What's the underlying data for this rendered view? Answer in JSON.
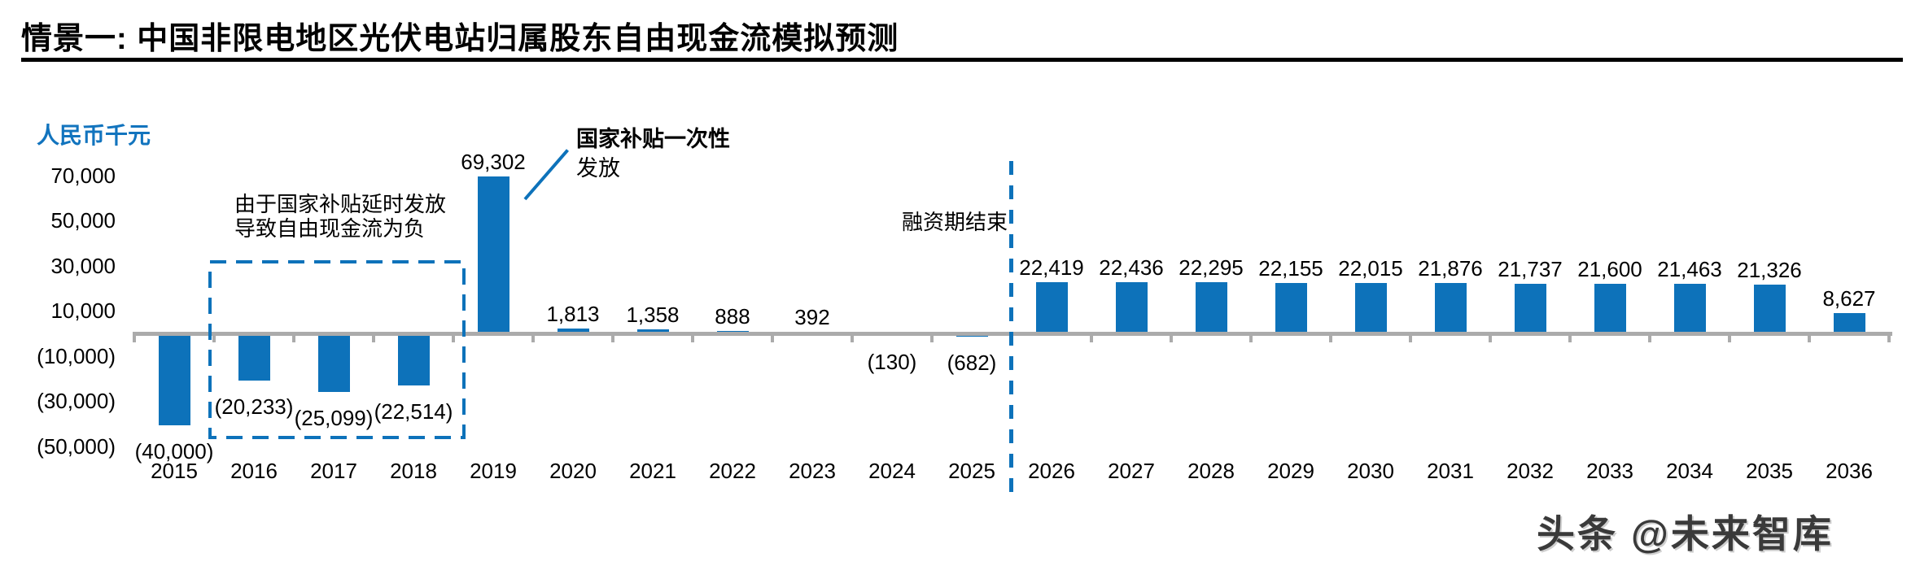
{
  "page": {
    "title": "情景一: 中国非限电地区光伏电站归属股东自由现金流模拟预测",
    "watermark": "头条 @未来智库"
  },
  "colors": {
    "bar_blue": "#0D72BA",
    "unit_label_blue": "#1274BE",
    "axis_gray": "#ABABAB",
    "title_black": "#000000"
  },
  "chart_data": {
    "type": "bar",
    "title": "情景一: 中国非限电地区光伏电站归属股东自由现金流模拟预测",
    "xlabel": "",
    "ylabel": "人民币千元",
    "ylim": [
      -57000,
      76000
    ],
    "grid": false,
    "legend": "none",
    "bar_color": "#0D72BA",
    "categories": [
      "2015",
      "2016",
      "2017",
      "2018",
      "2019",
      "2020",
      "2021",
      "2022",
      "2023",
      "2024",
      "2025",
      "2026",
      "2027",
      "2028",
      "2029",
      "2030",
      "2031",
      "2032",
      "2033",
      "2034",
      "2035",
      "2036"
    ],
    "values": [
      -40000,
      -20233,
      -25099,
      -22514,
      69302,
      1813,
      1358,
      888,
      392,
      -130,
      -682,
      22419,
      22436,
      22295,
      22155,
      22015,
      21876,
      21737,
      21600,
      21463,
      21326,
      8627
    ],
    "data_labels": [
      "(40,000)",
      "(20,233)",
      "(25,099)",
      "(22,514)",
      "69,302",
      "1,813",
      "1,358",
      "888",
      "392",
      "(130)",
      "(682)",
      "22,419",
      "22,436",
      "22,295",
      "22,155",
      "22,015",
      "21,876",
      "21,737",
      "21,600",
      "21,463",
      "21,326",
      "8,627"
    ],
    "y_ticks": [
      {
        "label": "70,000",
        "value": 70000
      },
      {
        "label": "50,000",
        "value": 50000
      },
      {
        "label": "30,000",
        "value": 30000
      },
      {
        "label": "10,000",
        "value": 10000
      },
      {
        "label": "(10,000)",
        "value": -10000
      },
      {
        "label": "(30,000)",
        "value": -30000
      },
      {
        "label": "(50,000)",
        "value": -50000
      }
    ],
    "annotations": {
      "delay_box_note_line1": "由于国家补贴延时发放",
      "delay_box_note_line2": "导致自由现金流为负",
      "delay_box_years": [
        "2016",
        "2017",
        "2018"
      ],
      "subsidy_note_line1": "国家补贴一次性",
      "subsidy_note_line2": "发放",
      "subsidy_note_target_year": "2019",
      "financing_end_note": "融资期结束",
      "financing_end_between": [
        "2025",
        "2026"
      ]
    }
  }
}
